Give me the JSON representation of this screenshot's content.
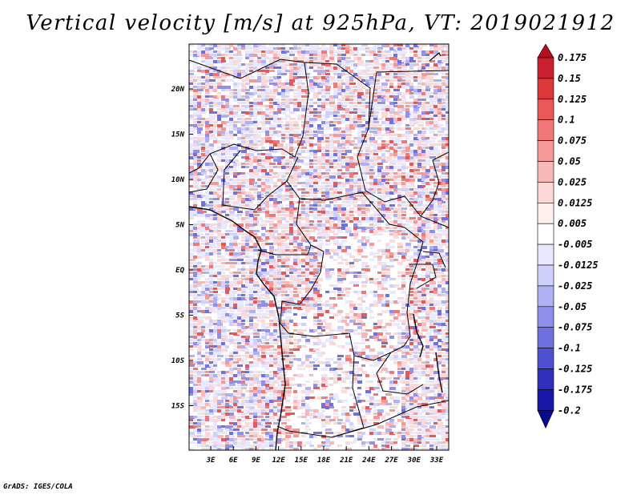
{
  "title": "Vertical velocity [m/s] at 925hPa, VT: 2019021912",
  "credit": "GrADS: IGES/COLA",
  "map": {
    "variable": "Vertical velocity",
    "units": "m/s",
    "level": "925hPa",
    "valid_time": "2019021912",
    "lat_labels": [
      "20N",
      "15N",
      "10N",
      "5N",
      "EQ",
      "5S",
      "10S",
      "15S"
    ],
    "lon_labels": [
      "3E",
      "6E",
      "9E",
      "12E",
      "15E",
      "18E",
      "21E",
      "24E",
      "27E",
      "30E",
      "33E"
    ]
  },
  "colorbar": {
    "levels": [
      "0.175",
      "0.15",
      "0.125",
      "0.1",
      "0.075",
      "0.05",
      "0.025",
      "0.0125",
      "0.005",
      "-0.005",
      "-0.0125",
      "-0.025",
      "-0.05",
      "-0.075",
      "-0.1",
      "-0.125",
      "-0.175",
      "-0.2"
    ],
    "colors": [
      "#b01020",
      "#c82030",
      "#dc3838",
      "#e85858",
      "#f07878",
      "#f49898",
      "#f8b8b8",
      "#fcd8d8",
      "#fff0f0",
      "#ffffff",
      "#e8e8ff",
      "#d0d0fc",
      "#b0b0f4",
      "#9090ec",
      "#7070e0",
      "#5050d0",
      "#3030bc",
      "#1818a8",
      "#0a0a90"
    ]
  }
}
